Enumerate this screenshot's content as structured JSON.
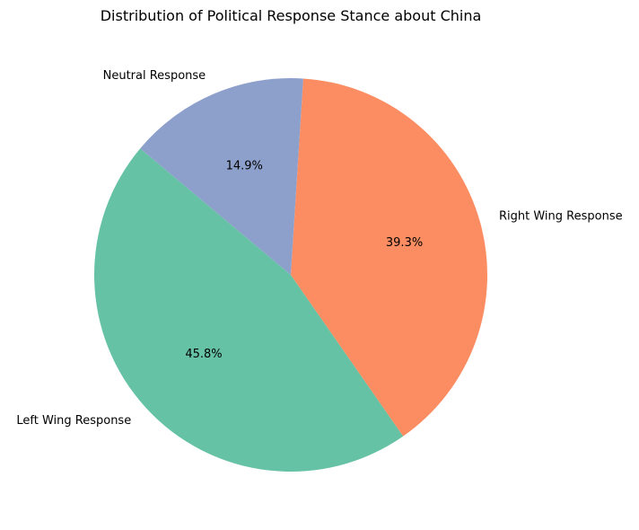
{
  "chart_data": {
    "type": "pie",
    "title": "Distribution of Political Response Stance about China",
    "slices": [
      {
        "label": "Left Wing Response",
        "value": 45.8,
        "pct_text": "45.8%",
        "color": "#66c2a5"
      },
      {
        "label": "Right Wing Response",
        "value": 39.3,
        "pct_text": "39.3%",
        "color": "#fc8d62"
      },
      {
        "label": "Neutral Response",
        "value": 14.9,
        "pct_text": "14.9%",
        "color": "#8da0cb"
      }
    ],
    "start_angle_deg": 140,
    "direction": "counterclockwise"
  }
}
